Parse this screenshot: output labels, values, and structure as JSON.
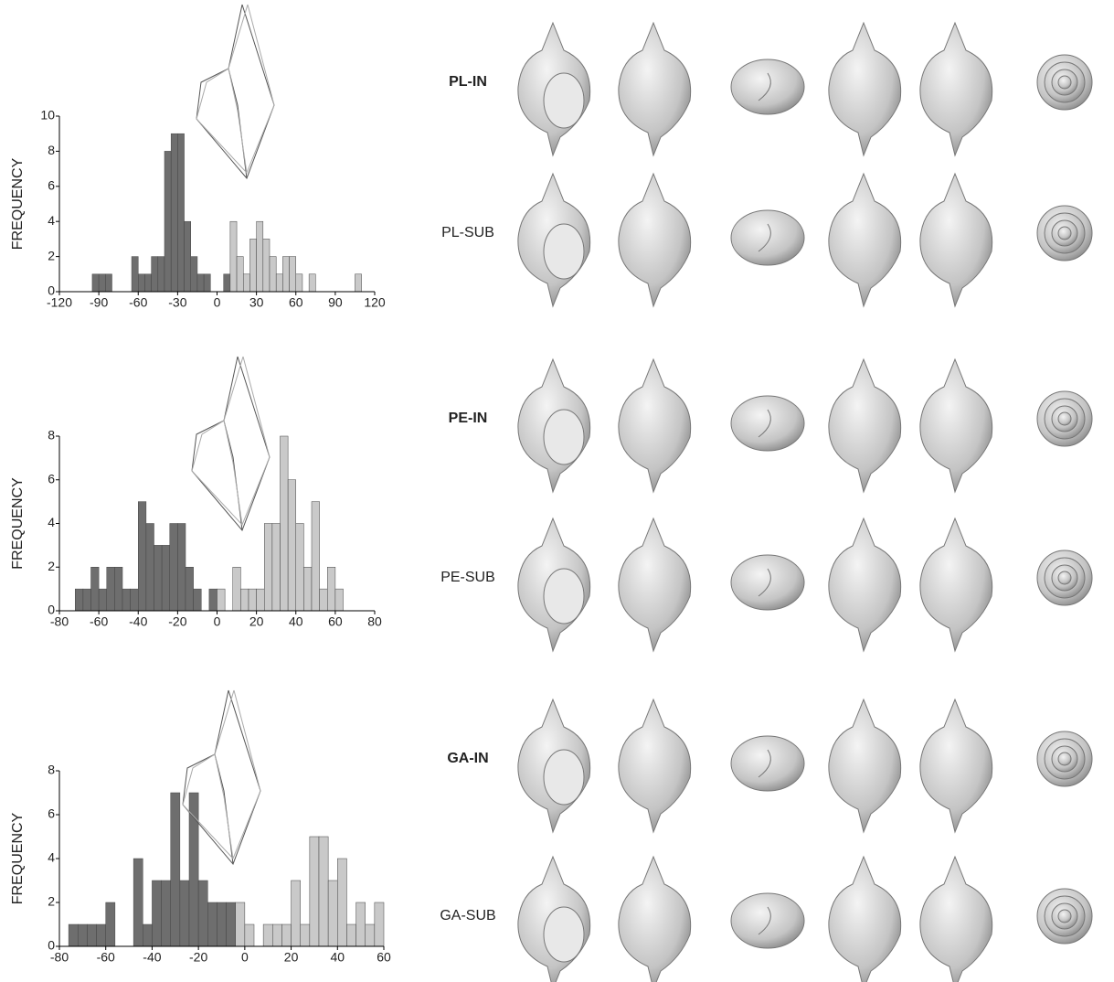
{
  "chart_data": [
    {
      "type": "histogram",
      "ylabel": "FREQUENCY",
      "bins": [
        -95,
        -90,
        -85,
        -80,
        -75,
        -70,
        -65,
        -60,
        -55,
        -50,
        -45,
        -40,
        -35,
        -30,
        -25,
        -20,
        -15,
        -10,
        -5,
        0,
        5,
        10,
        15,
        20,
        25,
        30,
        35,
        40,
        45,
        50,
        55,
        60,
        65,
        70,
        75,
        80,
        85,
        90,
        95,
        100,
        105,
        110,
        115
      ],
      "series": [
        {
          "color": "#6e6e6e",
          "values": [
            1,
            1,
            1,
            0,
            0,
            0,
            2,
            1,
            1,
            2,
            2,
            8,
            9,
            9,
            4,
            2,
            1,
            1,
            0,
            0,
            1,
            0,
            0,
            0,
            0,
            0,
            0,
            0,
            0,
            0,
            0,
            0,
            0,
            0,
            0,
            0,
            0,
            0,
            0,
            0,
            0,
            0
          ]
        },
        {
          "color": "#c9c9c9",
          "values": [
            0,
            0,
            0,
            0,
            0,
            0,
            0,
            0,
            0,
            0,
            0,
            0,
            0,
            0,
            0,
            0,
            0,
            0,
            0,
            0,
            0,
            4,
            2,
            1,
            3,
            4,
            3,
            2,
            1,
            2,
            2,
            1,
            0,
            1,
            0,
            0,
            0,
            0,
            0,
            0,
            1,
            0
          ]
        }
      ],
      "xlim": [
        -120,
        120
      ],
      "xticks": [
        -120,
        -90,
        -60,
        -30,
        0,
        30,
        60,
        90,
        120
      ],
      "ylim": [
        0,
        10
      ],
      "yticks": [
        0,
        2,
        4,
        6,
        8,
        10
      ]
    },
    {
      "type": "histogram",
      "ylabel": "FREQUENCY",
      "bins": [
        -72,
        -68,
        -64,
        -60,
        -56,
        -52,
        -48,
        -44,
        -40,
        -36,
        -32,
        -28,
        -24,
        -20,
        -16,
        -12,
        -8,
        -4,
        0,
        4,
        8,
        12,
        16,
        20,
        24,
        28,
        32,
        36,
        40,
        44,
        48,
        52,
        56,
        60,
        64
      ],
      "series": [
        {
          "color": "#6e6e6e",
          "values": [
            1,
            1,
            2,
            1,
            2,
            2,
            1,
            1,
            5,
            4,
            3,
            3,
            4,
            4,
            2,
            1,
            0,
            1,
            0,
            0,
            0,
            0,
            0,
            0,
            0,
            0,
            0,
            0,
            0,
            0,
            0,
            0,
            0,
            0
          ]
        },
        {
          "color": "#c9c9c9",
          "values": [
            0,
            0,
            0,
            0,
            0,
            0,
            0,
            0,
            0,
            0,
            0,
            0,
            0,
            0,
            0,
            0,
            0,
            0,
            1,
            0,
            2,
            1,
            1,
            1,
            4,
            4,
            8,
            6,
            4,
            2,
            5,
            1,
            2,
            1
          ]
        }
      ],
      "xlim": [
        -80,
        80
      ],
      "xticks": [
        -80,
        -60,
        -40,
        -20,
        0,
        20,
        40,
        60,
        80
      ],
      "ylim": [
        0,
        8
      ],
      "yticks": [
        0,
        2,
        4,
        6,
        8
      ]
    },
    {
      "type": "histogram",
      "ylabel": "FREQUENCY",
      "bins": [
        -76,
        -72,
        -68,
        -64,
        -60,
        -56,
        -52,
        -48,
        -44,
        -40,
        -36,
        -32,
        -28,
        -24,
        -20,
        -16,
        -12,
        -8,
        -4,
        0,
        4,
        8,
        12,
        16,
        20,
        24,
        28,
        32,
        36,
        40,
        44,
        48,
        52,
        56,
        60
      ],
      "series": [
        {
          "color": "#6e6e6e",
          "values": [
            1,
            1,
            1,
            1,
            2,
            0,
            0,
            4,
            1,
            3,
            3,
            7,
            3,
            7,
            3,
            2,
            2,
            2,
            0,
            0,
            0,
            0,
            0,
            0,
            0,
            0,
            0,
            0,
            0,
            0,
            0,
            0,
            0,
            0
          ]
        },
        {
          "color": "#c9c9c9",
          "values": [
            0,
            0,
            0,
            0,
            0,
            0,
            0,
            0,
            0,
            0,
            0,
            0,
            0,
            0,
            0,
            0,
            0,
            0,
            2,
            1,
            0,
            1,
            1,
            1,
            3,
            1,
            5,
            5,
            3,
            4,
            1,
            2,
            1,
            2
          ]
        }
      ],
      "xlim": [
        -80,
        60
      ],
      "xticks": [
        -80,
        -60,
        -40,
        -20,
        0,
        20,
        40,
        60
      ],
      "ylim": [
        0,
        8
      ],
      "yticks": [
        0,
        2,
        4,
        6,
        8
      ]
    }
  ],
  "shell_labels": [
    {
      "text": "PL-IN",
      "color": "#000000"
    },
    {
      "text": "PL-SUB",
      "color": "#a8a8a8"
    },
    {
      "text": "PE-IN",
      "color": "#000000"
    },
    {
      "text": "PE-SUB",
      "color": "#a8a8a8"
    },
    {
      "text": "GA-IN",
      "color": "#000000"
    },
    {
      "text": "GA-SUB",
      "color": "#a8a8a8"
    }
  ]
}
